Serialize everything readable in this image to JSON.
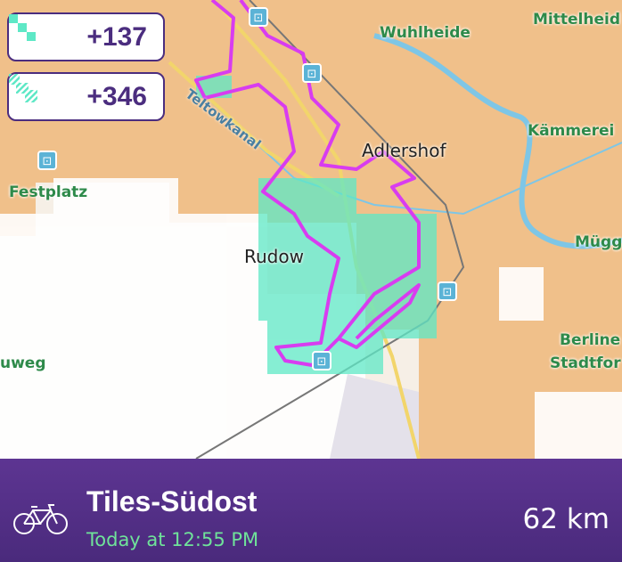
{
  "badges": [
    {
      "value": "+137",
      "icon": "new-tiles-icon",
      "color": "#5ee8c6"
    },
    {
      "value": "+346",
      "icon": "visited-tiles-striped-icon",
      "color": "#5ee8c6"
    }
  ],
  "map": {
    "labels": {
      "wuhlheide": "Wuhlheide",
      "mittelheide": "Mittelheid",
      "adlershof": "Adlershof",
      "kaemmerei": "Kämmerei",
      "festplatz": "Festplatz",
      "teltowkanal": "Teltowkanal",
      "rudow": "Rudow",
      "muegg": "Mügg",
      "berliner": "Berline",
      "stadtforst": "Stadtfor",
      "uweg": "uweg"
    },
    "route_color": "#d83cf0",
    "tile_color": "#f0c08a",
    "water_color": "#7ec6e6"
  },
  "activity": {
    "icon": "bicycle-icon",
    "title": "Tiles-Südost",
    "time": "Today at 12:55 PM",
    "distance": "62 km"
  }
}
